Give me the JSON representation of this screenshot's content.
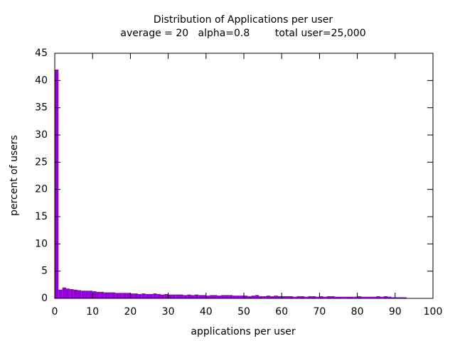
{
  "chart_data": {
    "type": "histogram",
    "title": "Distribution of Applications per user",
    "subtitle": "average = 20   alpha=0.8        total user=25,000",
    "x_label": "applications per user",
    "y_label": "percent of users",
    "color": "#9400d3",
    "bins": [
      0,
      1,
      2,
      3,
      4,
      5,
      6,
      7,
      8,
      9,
      10,
      11,
      12,
      13,
      14,
      15,
      16,
      17,
      18,
      19,
      20,
      21,
      22,
      23,
      24,
      25,
      26,
      27,
      28,
      29,
      30,
      31,
      32,
      33,
      34,
      35,
      36,
      37,
      38,
      39,
      40,
      41,
      42,
      43,
      44,
      45,
      46,
      47,
      48,
      49,
      50,
      51,
      52,
      53,
      54,
      55,
      56,
      57,
      58,
      59,
      60,
      61,
      62,
      63,
      64,
      65,
      66,
      67,
      68,
      69,
      70,
      71,
      72,
      73,
      74,
      75,
      76,
      77,
      78,
      79,
      80,
      81,
      82,
      83,
      84,
      85,
      86,
      87,
      88,
      89,
      90,
      91,
      92,
      93
    ],
    "values": [
      42,
      1.6,
      2.0,
      1.8,
      1.7,
      1.6,
      1.5,
      1.4,
      1.4,
      1.4,
      1.3,
      1.2,
      1.2,
      1.1,
      1.1,
      1.1,
      1.0,
      1.0,
      1.0,
      1.0,
      0.9,
      0.9,
      0.8,
      0.9,
      0.8,
      0.8,
      0.9,
      0.8,
      0.7,
      0.8,
      0.7,
      0.7,
      0.7,
      0.7,
      0.6,
      0.7,
      0.6,
      0.7,
      0.6,
      0.6,
      0.5,
      0.6,
      0.6,
      0.5,
      0.6,
      0.6,
      0.6,
      0.5,
      0.5,
      0.5,
      0.5,
      0.4,
      0.5,
      0.6,
      0.4,
      0.4,
      0.5,
      0.4,
      0.5,
      0.4,
      0.4,
      0.4,
      0.4,
      0.3,
      0.4,
      0.4,
      0.3,
      0.4,
      0.4,
      0.3,
      0.4,
      0.3,
      0.4,
      0.4,
      0.3,
      0.3,
      0.3,
      0.3,
      0.3,
      0.3,
      0.4,
      0.3,
      0.3,
      0.3,
      0.3,
      0.4,
      0.3,
      0.4,
      0.3,
      0.2,
      0.2,
      0.2,
      0.2
    ],
    "xlim": [
      0,
      100
    ],
    "xticks": [
      0,
      10,
      20,
      30,
      40,
      50,
      60,
      70,
      80,
      90,
      100
    ],
    "ylim": [
      0,
      45
    ],
    "yticks": [
      0,
      5,
      10,
      15,
      20,
      25,
      30,
      35,
      40,
      45
    ]
  }
}
